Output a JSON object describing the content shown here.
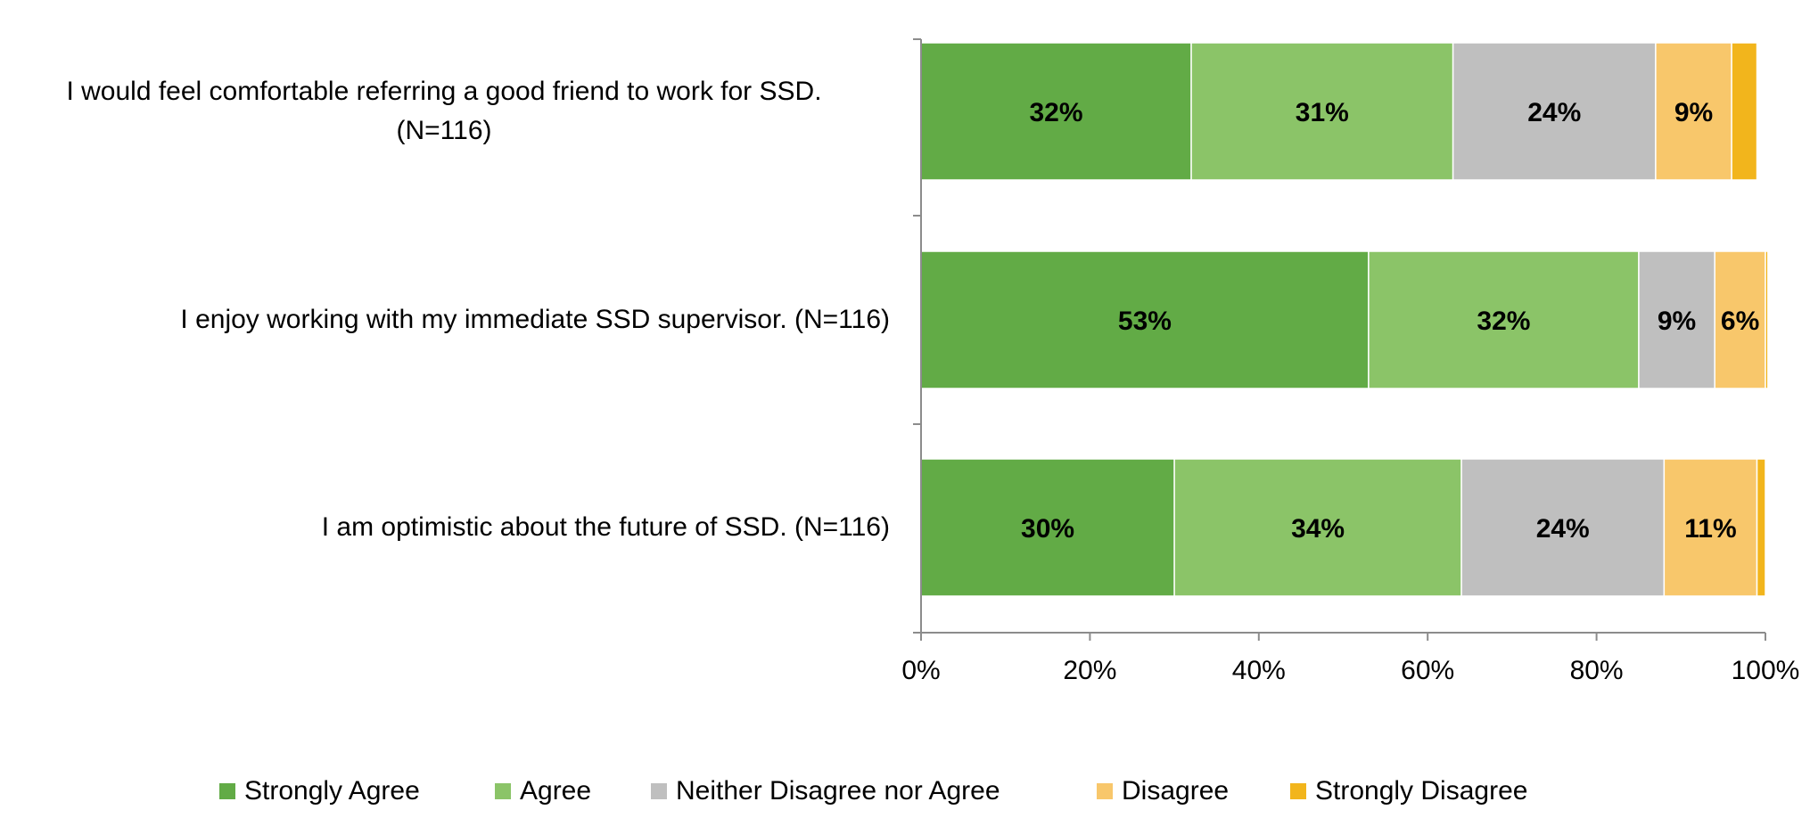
{
  "chart_data": {
    "type": "bar",
    "orientation": "horizontal",
    "stacked": true,
    "percent": true,
    "categories": [
      "I would feel comfortable referring a good friend to work for SSD. (N=116)",
      "I enjoy working with my immediate SSD supervisor. (N=116)",
      "I am optimistic about the future of SSD. (N=116)"
    ],
    "category_lines": [
      [
        "I would feel comfortable referring a good friend to work for SSD.",
        "(N=116)"
      ],
      [
        "I enjoy working with my immediate SSD supervisor. (N=116)"
      ],
      [
        "I am optimistic about the future of SSD. (N=116)"
      ]
    ],
    "series": [
      {
        "name": "Strongly Agree",
        "color": "#62AB46",
        "values": [
          32,
          53,
          30
        ],
        "labels": [
          "32%",
          "53%",
          "30%"
        ]
      },
      {
        "name": "Agree",
        "color": "#8BC468",
        "values": [
          31,
          32,
          34
        ],
        "labels": [
          "31%",
          "32%",
          "34%"
        ]
      },
      {
        "name": "Neither Disagree nor Agree",
        "color": "#BFBFBF",
        "values": [
          24,
          9,
          24
        ],
        "labels": [
          "24%",
          "9%",
          "24%"
        ]
      },
      {
        "name": "Disagree",
        "color": "#F8C76B",
        "values": [
          9,
          6,
          11
        ],
        "labels": [
          "9%",
          "6%",
          "11%"
        ]
      },
      {
        "name": "Strongly Disagree",
        "color": "#F2B51C",
        "values": [
          3,
          0.3,
          1
        ],
        "labels": [
          "",
          "",
          ""
        ]
      }
    ],
    "xlim": [
      0,
      100
    ],
    "xticks": [
      "0%",
      "20%",
      "40%",
      "60%",
      "80%",
      "100%"
    ],
    "legend_position": "bottom",
    "grid": false
  }
}
